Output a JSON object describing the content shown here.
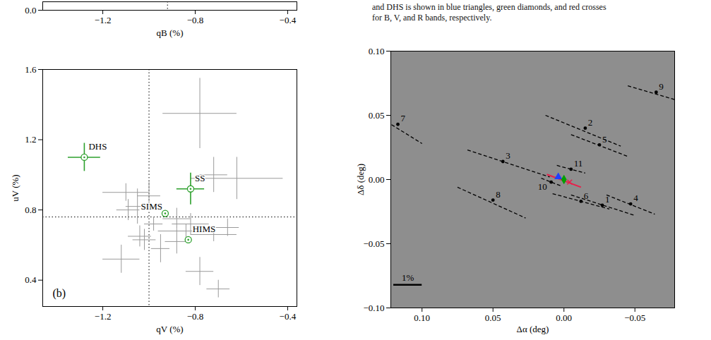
{
  "chart_data": [
    {
      "type": "scatter",
      "x_label": "qB (%)",
      "xlim": [
        -1.46,
        -0.36
      ],
      "xticks": [
        {
          "value": -1.2,
          "label": "−1.2"
        },
        {
          "value": -0.8,
          "label": "−0.8"
        },
        {
          "value": -0.4,
          "label": "−0.4"
        }
      ],
      "ylim": [
        0,
        0.1
      ],
      "yticks": [
        {
          "value": 0,
          "label": "0.0"
        }
      ],
      "reference_x": -0.92
    },
    {
      "type": "scatter",
      "panel_label": "(b)",
      "x_label": "qV (%)",
      "y_label": "uV (%)",
      "xlim": [
        -1.46,
        -0.36
      ],
      "xticks": [
        {
          "value": -1.2,
          "label": "−1.2"
        },
        {
          "value": -0.8,
          "label": "−0.8"
        },
        {
          "value": -0.4,
          "label": "−0.4"
        }
      ],
      "ylim": [
        0.25,
        1.6
      ],
      "yticks": [
        0.4,
        0.8,
        1.2,
        1.6
      ],
      "reference_x": -1.0,
      "reference_y": 0.76,
      "field_stars": {
        "color": "#9a9a9a",
        "points": [
          {
            "q": -0.78,
            "u": 1.35,
            "q_err": 0.16,
            "u_err": 0.2
          },
          {
            "q": -0.62,
            "u": 0.98,
            "q_err": 0.2,
            "u_err": 0.12
          },
          {
            "q": -0.72,
            "u": 1.0,
            "q_err": 0.06,
            "u_err": 0.1
          },
          {
            "q": -1.1,
            "u": 0.9,
            "q_err": 0.1,
            "u_err": 0.05
          },
          {
            "q": -1.05,
            "u": 0.82,
            "q_err": 0.05,
            "u_err": 0.1
          },
          {
            "q": -1.09,
            "u": 0.8,
            "q_err": 0.05,
            "u_err": 0.06
          },
          {
            "q": -1.0,
            "u": 0.88,
            "q_err": 0.05,
            "u_err": 0.08
          },
          {
            "q": -0.88,
            "u": 0.75,
            "q_err": 0.06,
            "u_err": 0.06
          },
          {
            "q": -0.82,
            "u": 0.72,
            "q_err": 0.08,
            "u_err": 0.06
          },
          {
            "q": -0.84,
            "u": 0.68,
            "q_err": 0.12,
            "u_err": 0.04
          },
          {
            "q": -0.72,
            "u": 0.66,
            "q_err": 0.1,
            "u_err": 0.04
          },
          {
            "q": -1.04,
            "u": 0.65,
            "q_err": 0.05,
            "u_err": 0.06
          },
          {
            "q": -0.88,
            "u": 0.62,
            "q_err": 0.05,
            "u_err": 0.07
          },
          {
            "q": -0.95,
            "u": 0.58,
            "q_err": 0.04,
            "u_err": 0.08
          },
          {
            "q": -1.02,
            "u": 0.63,
            "q_err": 0.05,
            "u_err": 0.06
          },
          {
            "q": -1.12,
            "u": 0.52,
            "q_err": 0.08,
            "u_err": 0.08
          },
          {
            "q": -0.78,
            "u": 0.45,
            "q_err": 0.06,
            "u_err": 0.08
          },
          {
            "q": -0.7,
            "u": 0.35,
            "q_err": 0.05,
            "u_err": 0.05
          },
          {
            "q": -0.66,
            "u": 0.7,
            "q_err": 0.05,
            "u_err": 0.05
          },
          {
            "q": -0.98,
            "u": 0.72,
            "q_err": 0.04,
            "u_err": 0.04
          }
        ]
      },
      "targets": {
        "color": "#2ca02c",
        "marker": "circle",
        "points": [
          {
            "label": "DHS",
            "q": -1.28,
            "u": 1.1,
            "q_err": 0.07,
            "u_err": 0.08
          },
          {
            "label": "SS",
            "q": -0.82,
            "u": 0.92,
            "q_err": 0.06,
            "u_err": 0.09
          },
          {
            "label": "SIMS",
            "q": -0.93,
            "u": 0.78,
            "q_err": 0.01,
            "u_err": 0.01
          },
          {
            "label": "HIMS",
            "q": -0.83,
            "u": 0.63,
            "q_err": 0.01,
            "u_err": 0.01
          }
        ]
      }
    },
    {
      "type": "scatter",
      "x_label": "Δα (deg)",
      "y_label": "Δδ (deg)",
      "xlim": [
        0.122,
        -0.078
      ],
      "xticks": [
        {
          "value": 0.1,
          "label": "0.10"
        },
        {
          "value": 0.05,
          "label": "0.05"
        },
        {
          "value": 0,
          "label": "0.00"
        },
        {
          "value": -0.05,
          "label": "−0.05"
        }
      ],
      "ylim": [
        -0.1,
        0.1
      ],
      "yticks": [
        {
          "value": -0.1,
          "label": "−0.10"
        },
        {
          "value": -0.05,
          "label": "−0.05"
        },
        {
          "value": 0,
          "label": "0.00"
        },
        {
          "value": 0.05,
          "label": "0.05"
        },
        {
          "value": 0.1,
          "label": "0.10"
        }
      ],
      "line_style": "dashed",
      "stars": [
        {
          "label": "1",
          "x": -0.027,
          "y": -0.02,
          "vector": [
            -0.005,
            -0.012,
            -0.05,
            -0.028
          ]
        },
        {
          "label": "2",
          "x": -0.015,
          "y": 0.04,
          "vector": [
            0.013,
            0.05,
            -0.04,
            0.026
          ]
        },
        {
          "label": "3",
          "x": 0.043,
          "y": 0.014,
          "vector": [
            0.068,
            0.023,
            0.01,
            0.002
          ]
        },
        {
          "label": "4",
          "x": -0.047,
          "y": -0.019,
          "vector": [
            -0.03,
            -0.012,
            -0.064,
            -0.027
          ]
        },
        {
          "label": "5",
          "x": -0.025,
          "y": 0.027,
          "vector": [
            -0.005,
            0.035,
            -0.045,
            0.018
          ]
        },
        {
          "label": "6",
          "x": -0.012,
          "y": -0.017,
          "vector": [
            0.008,
            -0.011,
            -0.032,
            -0.023
          ]
        },
        {
          "label": "7",
          "x": 0.117,
          "y": 0.043,
          "vector": [
            0.135,
            0.052,
            0.1,
            0.028
          ]
        },
        {
          "label": "8",
          "x": 0.05,
          "y": -0.016,
          "vector": [
            0.075,
            -0.006,
            0.027,
            -0.03
          ]
        },
        {
          "label": "9",
          "x": -0.065,
          "y": 0.068,
          "vector": [
            -0.045,
            0.073,
            -0.085,
            0.06
          ]
        },
        {
          "label": "10",
          "x": 0.009,
          "y": -0.002,
          "vector": [
            0.016,
            0.001,
            0.002,
            -0.005
          ]
        },
        {
          "label": "11",
          "x": -0.005,
          "y": 0.008,
          "vector": [
            0.005,
            0.011,
            -0.015,
            0.005
          ]
        }
      ],
      "target": {
        "color": "#e8204a",
        "vector": [
          0.012,
          0.004,
          -0.012,
          -0.006
        ],
        "bands": [
          {
            "color": "#2040ff",
            "marker": "triangle",
            "x": 0.004,
            "y": 0.002
          },
          {
            "color": "#00a000",
            "marker": "diamond",
            "x": 0.0,
            "y": 0.0
          },
          {
            "color": "#e8204a",
            "marker": "times",
            "x": -0.004,
            "y": -0.002
          }
        ]
      },
      "scale_bar": {
        "label": "1%",
        "x1": 0.12,
        "x2": 0.1,
        "y": -0.082
      }
    }
  ],
  "caption": [
    "and DHS is shown in blue triangles, green diamonds, and red crosses",
    "for B, V, and R bands, respectively."
  ]
}
